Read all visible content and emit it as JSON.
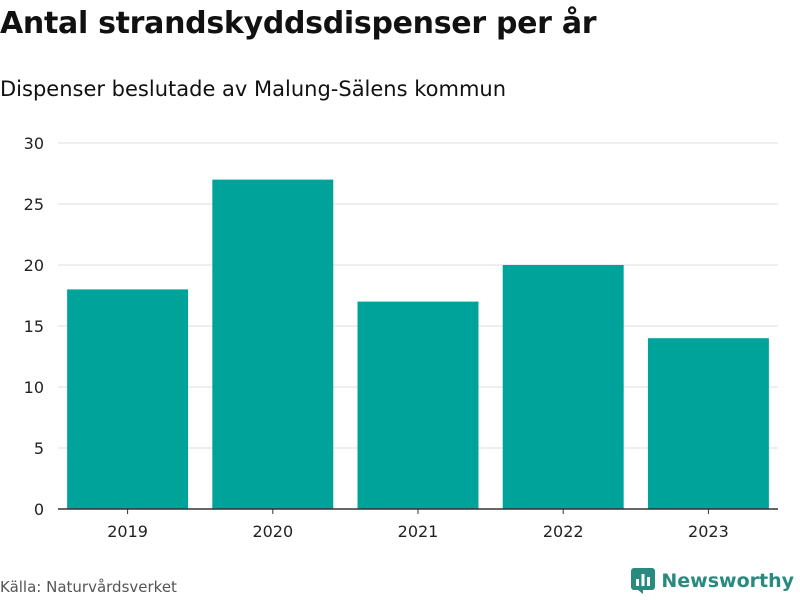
{
  "chart_data": {
    "type": "bar",
    "title": "Antal strandskyddsdispenser per år",
    "subtitle": "Dispenser beslutade av Malung-Sälens kommun",
    "categories": [
      "2019",
      "2020",
      "2021",
      "2022",
      "2023"
    ],
    "values": [
      18,
      27,
      17,
      20,
      14
    ],
    "ylim": [
      0,
      30
    ],
    "yticks": [
      0,
      5,
      10,
      15,
      20,
      25,
      30
    ],
    "xlabel": "",
    "ylabel": "",
    "grid": true,
    "bar_color": "#00a39a"
  },
  "footer": {
    "source": "Källa: Naturvårdsverket",
    "brand": "Newsworthy",
    "brand_color": "#2a8a80"
  }
}
